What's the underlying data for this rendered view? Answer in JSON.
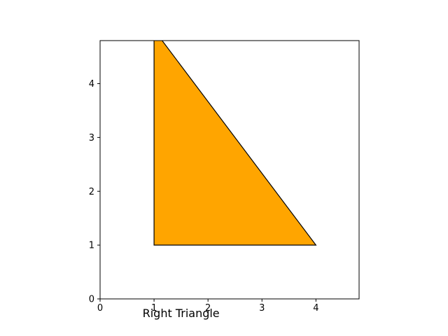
{
  "chart_data": {
    "type": "area",
    "title": "",
    "xlabel": "",
    "ylabel": "",
    "xlim": [
      0,
      4.8
    ],
    "ylim": [
      0,
      4.8
    ],
    "grid": false,
    "x_ticks": [
      0,
      1,
      2,
      3,
      4
    ],
    "y_ticks": [
      0,
      1,
      2,
      3,
      4
    ],
    "x_tick_labels": [
      "0",
      "1",
      "2",
      "3",
      "4"
    ],
    "y_tick_labels": [
      "0",
      "1",
      "2",
      "3",
      "4"
    ],
    "annotations": [
      {
        "text": "Right Triangle",
        "x": 1.5,
        "y": -0.34
      }
    ],
    "series": [
      {
        "x": [
          1,
          4,
          1
        ],
        "y": [
          1,
          1,
          5
        ],
        "fill": "#FFA500",
        "edge": "#000000"
      }
    ]
  }
}
